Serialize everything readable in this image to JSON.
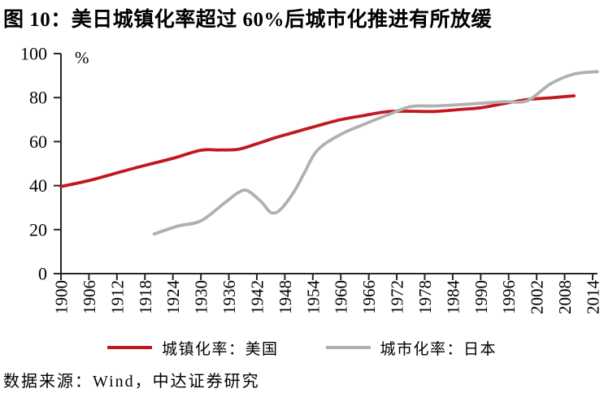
{
  "source": "数据来源：Wind，中达证券研究",
  "chart_data": {
    "type": "line",
    "title": "图 10：美日城镇化率超过 60%后城市化推进有所放缓",
    "unit_label": "%",
    "xlim": [
      1900,
      2015.5
    ],
    "ylim": [
      0,
      100
    ],
    "x_ticks": [
      1900,
      1906,
      1912,
      1918,
      1924,
      1930,
      1936,
      1942,
      1948,
      1954,
      1960,
      1966,
      1972,
      1978,
      1984,
      1990,
      1996,
      2002,
      2008,
      2014
    ],
    "y_ticks": [
      0,
      20,
      40,
      60,
      80,
      100
    ],
    "grid": false,
    "legend_position": "bottom",
    "axis_color": "#262626",
    "series": [
      {
        "name": "城镇化率：美国",
        "color": "#c2181d",
        "points": [
          [
            1900,
            39.6
          ],
          [
            1906,
            42.3
          ],
          [
            1912,
            45.8
          ],
          [
            1918,
            49.2
          ],
          [
            1924,
            52.4
          ],
          [
            1930,
            56.1
          ],
          [
            1934,
            56.2
          ],
          [
            1938,
            56.5
          ],
          [
            1942,
            59.0
          ],
          [
            1946,
            61.8
          ],
          [
            1950,
            64.2
          ],
          [
            1955,
            67.2
          ],
          [
            1960,
            70.0
          ],
          [
            1965,
            71.9
          ],
          [
            1970,
            73.6
          ],
          [
            1975,
            73.8
          ],
          [
            1980,
            73.7
          ],
          [
            1985,
            74.5
          ],
          [
            1990,
            75.4
          ],
          [
            1995,
            77.3
          ],
          [
            2000,
            79.1
          ],
          [
            2005,
            79.9
          ],
          [
            2010,
            80.8
          ]
        ]
      },
      {
        "name": "城市化率：日本",
        "color": "#b0b0b0",
        "points": [
          [
            1920,
            18.0
          ],
          [
            1925,
            21.6
          ],
          [
            1930,
            24.0
          ],
          [
            1935,
            32.0
          ],
          [
            1938,
            36.8
          ],
          [
            1940,
            37.7
          ],
          [
            1943,
            32.5
          ],
          [
            1945,
            27.8
          ],
          [
            1947,
            29.0
          ],
          [
            1950,
            37.3
          ],
          [
            1952,
            45.0
          ],
          [
            1955,
            56.1
          ],
          [
            1960,
            63.3
          ],
          [
            1965,
            67.9
          ],
          [
            1970,
            72.1
          ],
          [
            1975,
            75.9
          ],
          [
            1980,
            76.2
          ],
          [
            1985,
            76.7
          ],
          [
            1990,
            77.4
          ],
          [
            1995,
            78.1
          ],
          [
            2000,
            78.6
          ],
          [
            2005,
            86.3
          ],
          [
            2010,
            90.7
          ],
          [
            2015,
            91.8
          ]
        ]
      }
    ]
  }
}
